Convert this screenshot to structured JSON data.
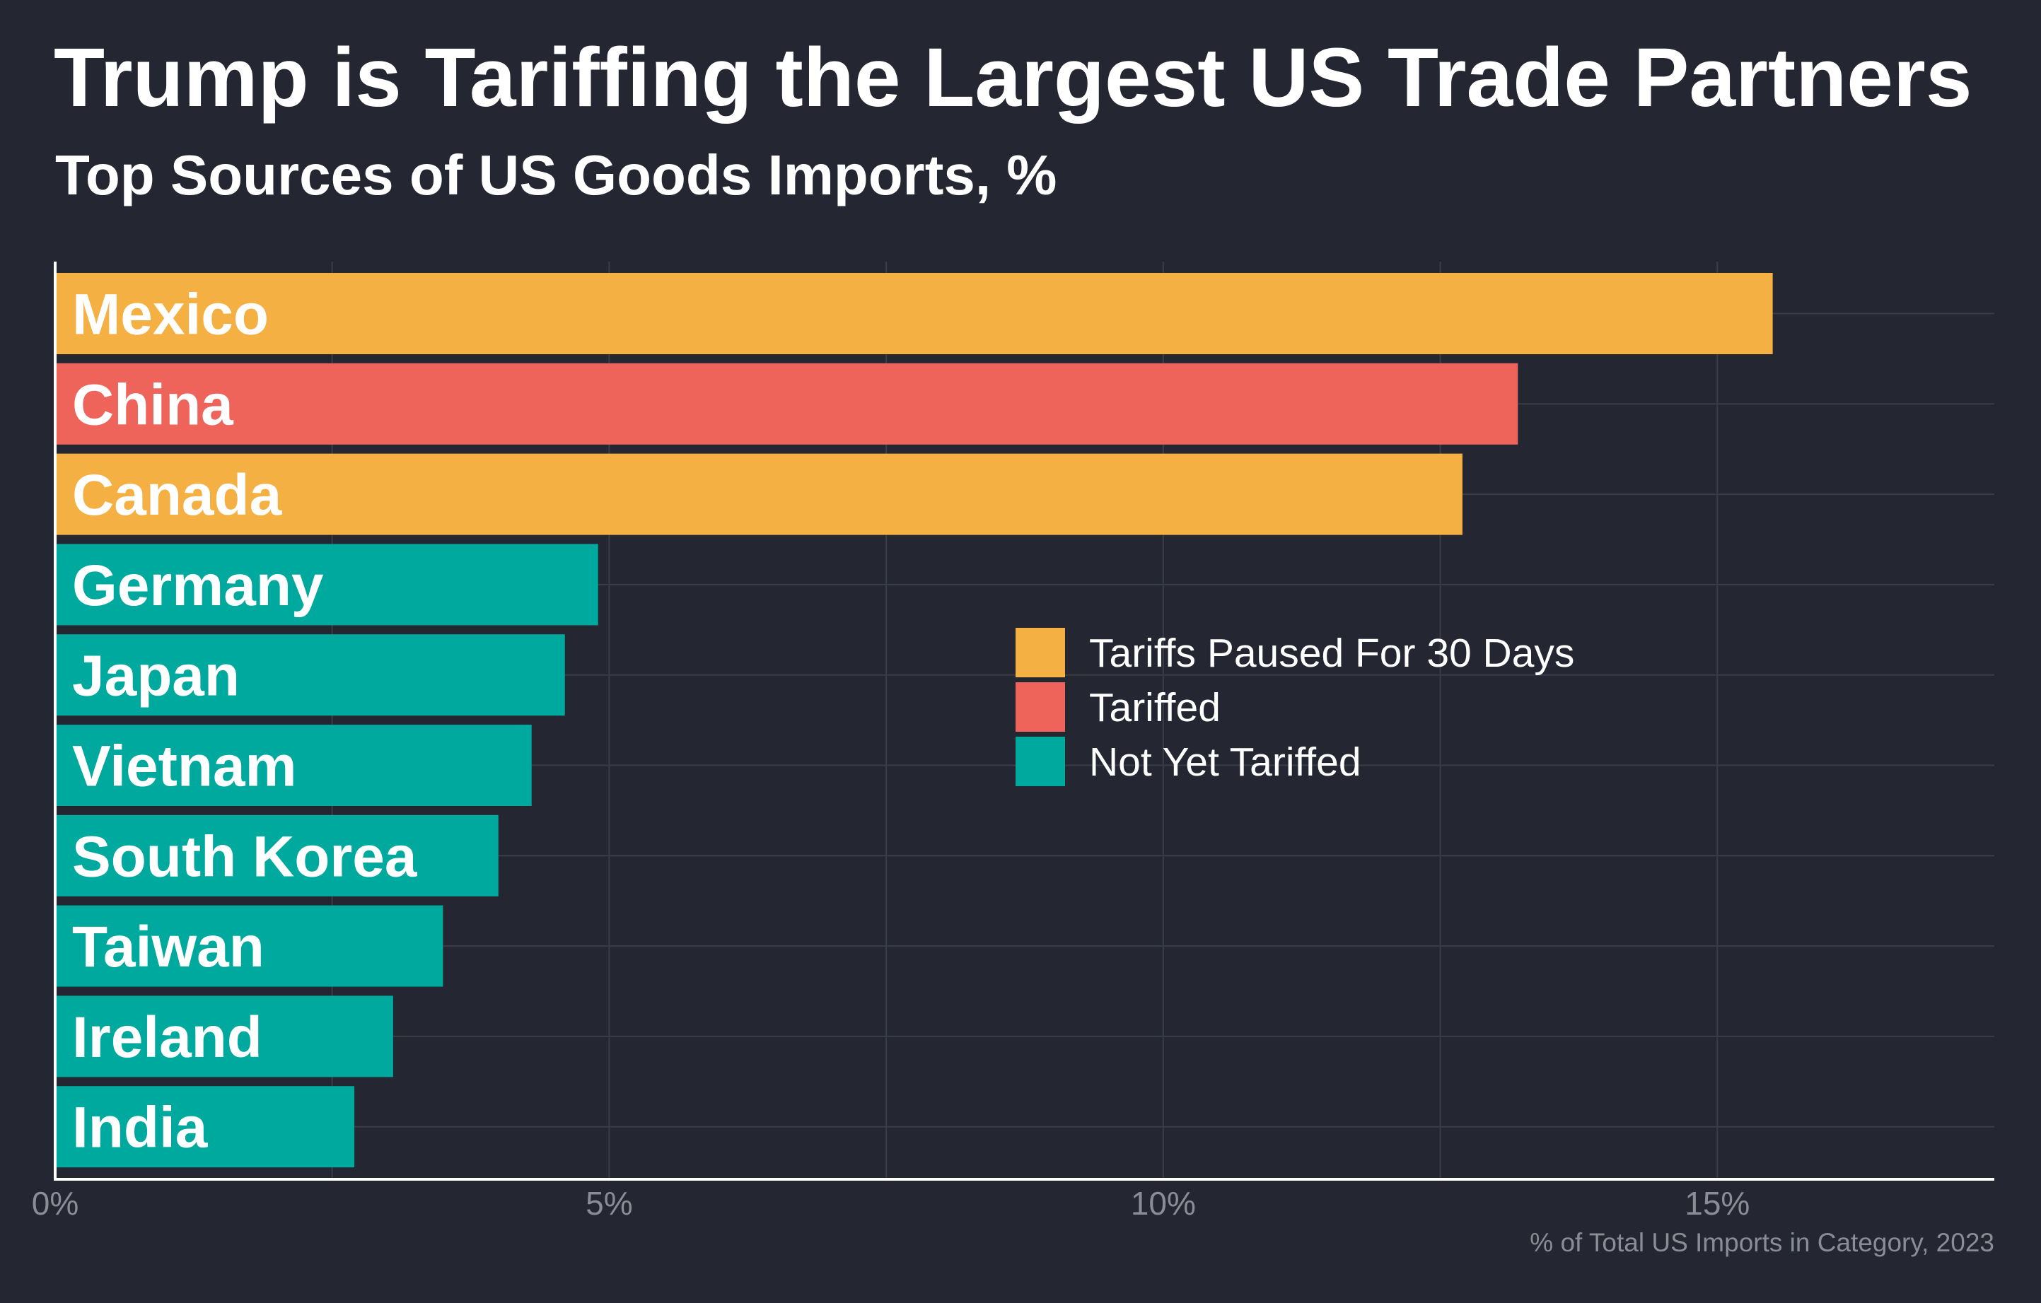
{
  "title": "Trump is Tariffing the Largest US Trade Partners",
  "subtitle": "Top Sources of US Goods Imports, %",
  "colors": {
    "background": "#242731",
    "paused": "#f5b043",
    "tariffed": "#ee635a",
    "not_tariffed": "#00a99d",
    "grid": "#3a3d46",
    "axis": "#ffffff",
    "muted_text": "#8a8d96"
  },
  "chart_data": {
    "type": "bar",
    "orientation": "horizontal",
    "categories": [
      "Mexico",
      "China",
      "Canada",
      "Germany",
      "Japan",
      "Vietnam",
      "South Korea",
      "Taiwan",
      "Ireland",
      "India"
    ],
    "values": [
      15.5,
      13.2,
      12.7,
      4.9,
      4.6,
      4.3,
      4.0,
      3.5,
      3.05,
      2.7
    ],
    "status": [
      "paused",
      "tariffed",
      "paused",
      "not_tariffed",
      "not_tariffed",
      "not_tariffed",
      "not_tariffed",
      "not_tariffed",
      "not_tariffed",
      "not_tariffed"
    ],
    "xlim": [
      0,
      17.5
    ],
    "xticks": [
      0,
      5,
      10,
      15
    ],
    "xtick_labels": [
      "0%",
      "5%",
      "10%",
      "15%"
    ],
    "xlabel": "% of Total US Imports in Category, 2023",
    "grid": true,
    "legend": {
      "placement": "center-right",
      "entries": [
        {
          "key": "paused",
          "label": "Tariffs Paused For 30 Days"
        },
        {
          "key": "tariffed",
          "label": "Tariffed"
        },
        {
          "key": "not_tariffed",
          "label": "Not Yet Tariffed"
        }
      ]
    }
  }
}
